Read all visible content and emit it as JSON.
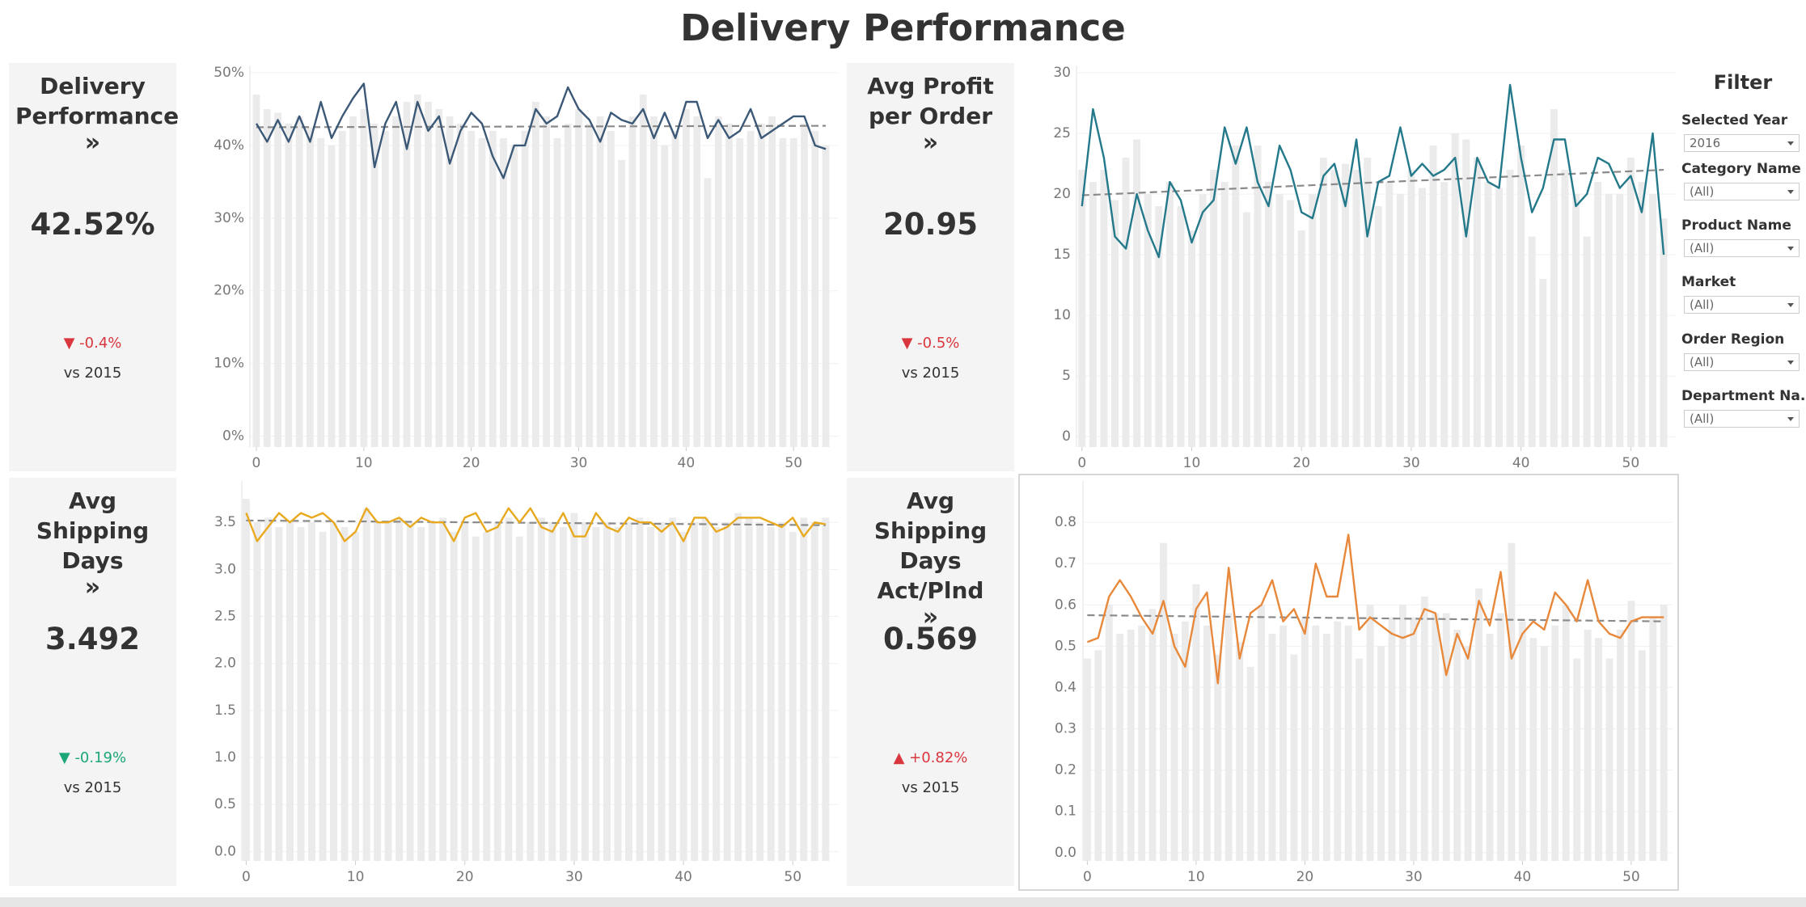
{
  "title": "Delivery Performance",
  "kpis": [
    {
      "title": "Delivery Performance",
      "arrow": "»",
      "value": "42.52%",
      "change": "▼ -0.4%",
      "change_color": "#d9363e",
      "compare": "vs 2015"
    },
    {
      "title": "Avg Profit per Order",
      "arrow": "»",
      "value": "20.95",
      "change": "▼ -0.5%",
      "change_color": "#d9363e",
      "compare": "vs 2015"
    },
    {
      "title": "Avg Shipping Days",
      "arrow": "»",
      "value": "3.492",
      "change": "▼ -0.19%",
      "change_color": "#1ba67a",
      "compare": "vs 2015"
    },
    {
      "title": "Avg Shipping Days Act/Plnd",
      "arrow": "»",
      "value": "0.569",
      "change": "▲ +0.82%",
      "change_color": "#d9363e",
      "compare": "vs 2015"
    }
  ],
  "filters": {
    "title": "Filter",
    "items": [
      {
        "label": "Selected Year",
        "value": "2016"
      },
      {
        "label": "Category Name",
        "value": "(All)"
      },
      {
        "label": "Product Name",
        "value": "(All)"
      },
      {
        "label": "Market",
        "value": "(All)"
      },
      {
        "label": "Order Region",
        "value": "(All)"
      },
      {
        "label": "Department Na..",
        "value": "(All)"
      }
    ]
  },
  "chart_data": [
    {
      "type": "line",
      "grid": true,
      "x": [
        0,
        1,
        2,
        3,
        4,
        5,
        6,
        7,
        8,
        9,
        10,
        11,
        12,
        13,
        14,
        15,
        16,
        17,
        18,
        19,
        20,
        21,
        22,
        23,
        24,
        25,
        26,
        27,
        28,
        29,
        30,
        31,
        32,
        33,
        34,
        35,
        36,
        37,
        38,
        39,
        40,
        41,
        42,
        43,
        44,
        45,
        46,
        47,
        48,
        49,
        50,
        51,
        52,
        53
      ],
      "xlim": [
        -0.6,
        54.2
      ],
      "xticks": [
        0,
        10,
        20,
        30,
        40,
        50
      ],
      "ylim": [
        -1.5,
        51
      ],
      "yticks": [
        {
          "value": 0,
          "label": "0%"
        },
        {
          "value": 10,
          "label": "10%"
        },
        {
          "value": 20,
          "label": "20%"
        },
        {
          "value": 30,
          "label": "30%"
        },
        {
          "value": 40,
          "label": "40%"
        },
        {
          "value": 50,
          "label": "50%"
        }
      ],
      "trend": [
        42.5,
        42.7
      ],
      "series": [
        {
          "type": "bar",
          "color": "#ebebeb",
          "values": [
            47,
            45,
            44.5,
            43,
            44,
            42.5,
            41,
            40,
            42,
            44,
            45,
            43,
            42,
            44,
            46,
            47,
            46,
            45,
            44,
            43,
            42,
            41,
            42,
            41,
            40,
            42,
            46,
            44,
            41,
            43,
            45,
            43,
            44,
            42,
            38,
            44,
            47,
            44,
            40,
            42,
            45,
            44,
            35.5,
            44,
            43,
            41,
            42,
            43,
            44,
            41,
            41,
            43,
            42,
            40
          ]
        },
        {
          "type": "line",
          "color": "#3b5876",
          "values": [
            43,
            40.5,
            43.5,
            40.5,
            44,
            40.5,
            46,
            41,
            44,
            46.5,
            48.5,
            37,
            43,
            46,
            39.5,
            46,
            42,
            44,
            37.5,
            42,
            44.5,
            43,
            38.5,
            35.5,
            40,
            40,
            45,
            43,
            44,
            48,
            45,
            43.5,
            40.5,
            44.5,
            43.5,
            43,
            45,
            41,
            44.5,
            41,
            46,
            46,
            41,
            43.5,
            41,
            42,
            45,
            41,
            42,
            43,
            44,
            44,
            40,
            39.5
          ]
        }
      ]
    },
    {
      "type": "line",
      "grid": true,
      "x": [
        0,
        1,
        2,
        3,
        4,
        5,
        6,
        7,
        8,
        9,
        10,
        11,
        12,
        13,
        14,
        15,
        16,
        17,
        18,
        19,
        20,
        21,
        22,
        23,
        24,
        25,
        26,
        27,
        28,
        29,
        30,
        31,
        32,
        33,
        34,
        35,
        36,
        37,
        38,
        39,
        40,
        41,
        42,
        43,
        44,
        45,
        46,
        47,
        48,
        49,
        50,
        51,
        52,
        53
      ],
      "xlim": [
        -0.5,
        54.1
      ],
      "xticks": [
        0,
        10,
        20,
        30,
        40,
        50
      ],
      "ylim": [
        -0.85,
        30.6
      ],
      "yticks": [
        0,
        5,
        10,
        15,
        20,
        25,
        30
      ],
      "trend": [
        19.9,
        22
      ],
      "series": [
        {
          "type": "bar",
          "color": "#ebebeb",
          "values": [
            22,
            21,
            22,
            19.5,
            23,
            24.5,
            20,
            19,
            21,
            19,
            17,
            20,
            22,
            21,
            24,
            18.5,
            24,
            21,
            20,
            19.5,
            17,
            20,
            23,
            22,
            22.5,
            22,
            23,
            19,
            21,
            20,
            22,
            20.5,
            24,
            21,
            25,
            24.5,
            23,
            21,
            20.5,
            22,
            24,
            16.5,
            13,
            27,
            22,
            20,
            16.5,
            21,
            20,
            20,
            23,
            21,
            20,
            18
          ]
        },
        {
          "type": "line",
          "color": "#23798a",
          "values": [
            19,
            27,
            23,
            16.5,
            15.5,
            20,
            17,
            14.8,
            21,
            19.5,
            16,
            18.5,
            19.5,
            25.5,
            22.5,
            25.5,
            21,
            19,
            24,
            22,
            18.5,
            18,
            21.5,
            22.5,
            19,
            24.5,
            16.5,
            21,
            21.5,
            25.5,
            21.5,
            22.5,
            21.5,
            22,
            23,
            16.5,
            23,
            21,
            20.5,
            29,
            23,
            18.5,
            20.5,
            24.5,
            24.5,
            19,
            20,
            23,
            22.5,
            20.5,
            21.5,
            18.5,
            25,
            15
          ]
        }
      ]
    },
    {
      "type": "line",
      "grid": true,
      "x": [
        0,
        1,
        2,
        3,
        4,
        5,
        6,
        7,
        8,
        9,
        10,
        11,
        12,
        13,
        14,
        15,
        16,
        17,
        18,
        19,
        20,
        21,
        22,
        23,
        24,
        25,
        26,
        27,
        28,
        29,
        30,
        31,
        32,
        33,
        34,
        35,
        36,
        37,
        38,
        39,
        40,
        41,
        42,
        43,
        44,
        45,
        46,
        47,
        48,
        49,
        50,
        51,
        52,
        53
      ],
      "xlim": [
        -0.4,
        54.2
      ],
      "xticks": [
        0,
        10,
        20,
        30,
        40,
        50
      ],
      "ylim": [
        -0.1,
        3.94
      ],
      "yticks": [
        {
          "value": 0,
          "label": "0.0"
        },
        0.5,
        {
          "value": 1,
          "label": "1.0"
        },
        1.5,
        {
          "value": 2,
          "label": "2.0"
        },
        2.5,
        {
          "value": 3,
          "label": "3.0"
        },
        3.5
      ],
      "trend": [
        3.52,
        3.47
      ],
      "series": [
        {
          "type": "bar",
          "color": "#ebebeb",
          "values": [
            3.75,
            3.5,
            3.55,
            3.45,
            3.5,
            3.45,
            3.5,
            3.4,
            3.5,
            3.45,
            3.4,
            3.65,
            3.5,
            3.5,
            3.55,
            3.5,
            3.45,
            3.5,
            3.55,
            3.4,
            3.5,
            3.35,
            3.4,
            3.5,
            3.55,
            3.35,
            3.5,
            3.55,
            3.5,
            3.45,
            3.6,
            3.5,
            3.45,
            3.5,
            3.45,
            3.5,
            3.55,
            3.45,
            3.5,
            3.55,
            3.4,
            3.5,
            3.55,
            3.45,
            3.5,
            3.6,
            3.55,
            3.5,
            3.45,
            3.5,
            3.4,
            3.55,
            3.5,
            3.55
          ]
        },
        {
          "type": "line",
          "color": "#e8a91e",
          "values": [
            3.6,
            3.3,
            3.45,
            3.6,
            3.5,
            3.6,
            3.55,
            3.6,
            3.5,
            3.3,
            3.4,
            3.65,
            3.5,
            3.5,
            3.55,
            3.45,
            3.55,
            3.5,
            3.5,
            3.3,
            3.55,
            3.6,
            3.4,
            3.45,
            3.65,
            3.5,
            3.65,
            3.45,
            3.4,
            3.6,
            3.35,
            3.35,
            3.6,
            3.45,
            3.4,
            3.55,
            3.5,
            3.5,
            3.4,
            3.5,
            3.3,
            3.55,
            3.55,
            3.4,
            3.45,
            3.55,
            3.55,
            3.55,
            3.5,
            3.45,
            3.55,
            3.35,
            3.5,
            3.48
          ]
        }
      ]
    },
    {
      "type": "line",
      "grid": true,
      "x": [
        0,
        1,
        2,
        3,
        4,
        5,
        6,
        7,
        8,
        9,
        10,
        11,
        12,
        13,
        14,
        15,
        16,
        17,
        18,
        19,
        20,
        21,
        22,
        23,
        24,
        25,
        26,
        27,
        28,
        29,
        30,
        31,
        32,
        33,
        34,
        35,
        36,
        37,
        38,
        39,
        40,
        41,
        42,
        43,
        44,
        45,
        46,
        47,
        48,
        49,
        50,
        51,
        52,
        53
      ],
      "xlim": [
        -0.4,
        53.8
      ],
      "xticks": [
        0,
        10,
        20,
        30,
        40,
        50
      ],
      "ylim": [
        -0.02,
        0.9
      ],
      "yticks": [
        {
          "value": 0,
          "label": "0.0"
        },
        0.1,
        0.2,
        0.3,
        0.4,
        0.5,
        0.6,
        0.7,
        0.8
      ],
      "trend": [
        0.575,
        0.56
      ],
      "series": [
        {
          "type": "bar",
          "color": "#ebebeb",
          "values": [
            0.47,
            0.49,
            0.6,
            0.53,
            0.54,
            0.55,
            0.59,
            0.75,
            0.53,
            0.56,
            0.65,
            0.55,
            0.48,
            0.58,
            0.51,
            0.45,
            0.6,
            0.53,
            0.55,
            0.48,
            0.57,
            0.55,
            0.53,
            0.56,
            0.55,
            0.47,
            0.6,
            0.5,
            0.57,
            0.6,
            0.57,
            0.62,
            0.58,
            0.58,
            0.54,
            0.5,
            0.64,
            0.53,
            0.58,
            0.75,
            0.56,
            0.52,
            0.5,
            0.55,
            0.6,
            0.47,
            0.54,
            0.52,
            0.47,
            0.54,
            0.61,
            0.49,
            0.57,
            0.6
          ]
        },
        {
          "type": "line",
          "color": "#e8883a",
          "values": [
            0.51,
            0.52,
            0.62,
            0.66,
            0.62,
            0.57,
            0.53,
            0.61,
            0.5,
            0.45,
            0.59,
            0.63,
            0.41,
            0.69,
            0.47,
            0.58,
            0.6,
            0.66,
            0.56,
            0.59,
            0.53,
            0.7,
            0.62,
            0.62,
            0.77,
            0.54,
            0.57,
            0.55,
            0.53,
            0.52,
            0.53,
            0.59,
            0.58,
            0.43,
            0.53,
            0.47,
            0.61,
            0.55,
            0.68,
            0.47,
            0.53,
            0.56,
            0.54,
            0.63,
            0.6,
            0.56,
            0.66,
            0.56,
            0.53,
            0.52,
            0.56,
            0.57,
            0.57,
            0.57
          ]
        }
      ]
    }
  ]
}
